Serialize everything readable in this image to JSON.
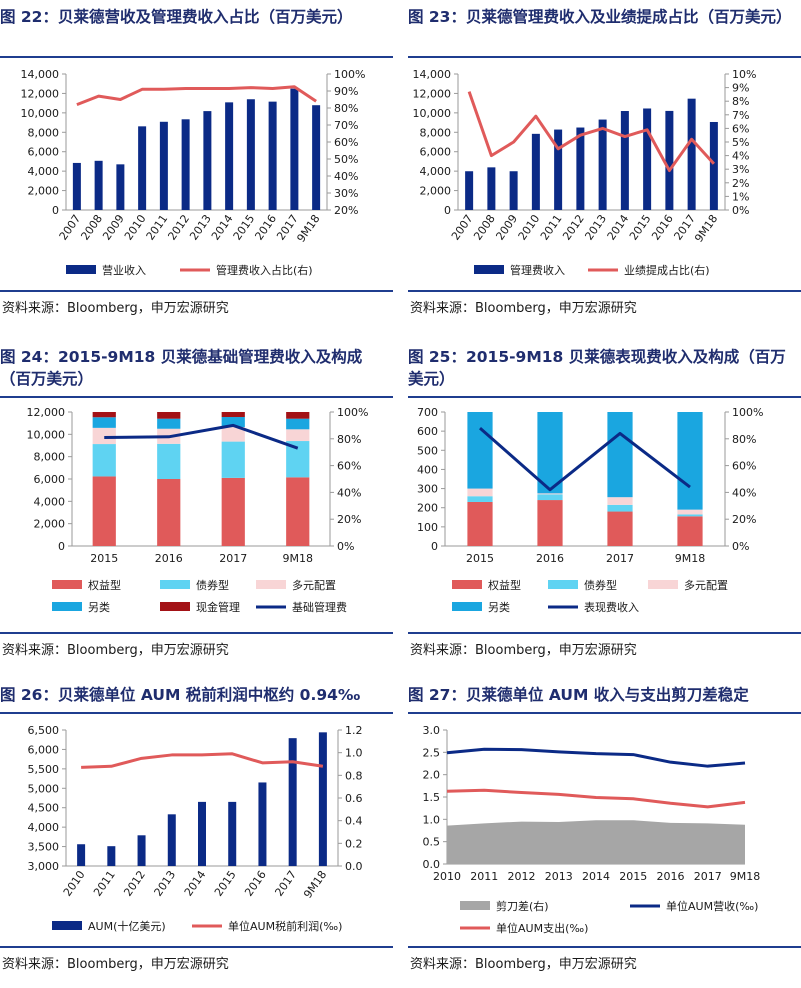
{
  "source_text": "资料来源：Bloomberg，申万宏源研究",
  "colors": {
    "navy": "#0b2a86",
    "red": "#e05a5a",
    "light_blue": "#5fd3f2",
    "pink": "#f8d5d6",
    "cyan": "#1aa6e0",
    "dark_red": "#a31216",
    "gray": "#a6a6a6",
    "title": "#1f2d6e",
    "rule": "#1f3d8f"
  },
  "charts": [
    {
      "id": "fig22",
      "title": "图 22：贝莱德营收及管理费收入占比（百万美元）",
      "chart_data": {
        "type": "bar+line",
        "categories": [
          "2007",
          "2008",
          "2009",
          "2010",
          "2011",
          "2012",
          "2013",
          "2014",
          "2015",
          "2016",
          "2017",
          "9M18"
        ],
        "left_axis": {
          "min": 0,
          "max": 14000,
          "step": 2000,
          "format": "thousands"
        },
        "right_axis": {
          "min": 20,
          "max": 100,
          "step": 10,
          "format": "percent"
        },
        "bars": [
          {
            "name": "营业收入",
            "color": "#0b2a86",
            "values": [
              4845,
              5064,
              4700,
              8612,
              9081,
              9337,
              10180,
              11081,
              11401,
              11155,
              12491,
              10787
            ]
          }
        ],
        "lines": [
          {
            "name": "管理费收入占比(右)",
            "color": "#e05a5a",
            "axis": "right",
            "values": [
              82,
              87,
              85,
              91,
              91,
              91.5,
              91.5,
              91.5,
              92,
              91.5,
              92.5,
              84
            ]
          }
        ],
        "legend": [
          {
            "label": "营业收入",
            "kind": "bar",
            "color": "#0b2a86"
          },
          {
            "label": "管理费收入占比(右)",
            "kind": "line",
            "color": "#e05a5a"
          }
        ],
        "rotate_x_labels": true
      }
    },
    {
      "id": "fig23",
      "title": "图 23：贝莱德管理费收入及业绩提成占比（百万美元）",
      "chart_data": {
        "type": "bar+line",
        "categories": [
          "2007",
          "2008",
          "2009",
          "2010",
          "2011",
          "2012",
          "2013",
          "2014",
          "2015",
          "2016",
          "2017",
          "9M18"
        ],
        "left_axis": {
          "min": 0,
          "max": 14000,
          "step": 2000,
          "format": "thousands"
        },
        "right_axis": {
          "min": 0,
          "max": 10,
          "step": 1,
          "format": "percent"
        },
        "bars": [
          {
            "name": "管理费收入",
            "color": "#0b2a86",
            "values": [
              3990,
              4390,
              3990,
              7840,
              8280,
              8490,
              9310,
              10190,
              10450,
              10200,
              11460,
              9060
            ]
          }
        ],
        "lines": [
          {
            "name": "业绩提成占比(右)",
            "color": "#e05a5a",
            "axis": "right",
            "values": [
              8.7,
              4.0,
              5.0,
              6.9,
              4.5,
              5.5,
              6.0,
              5.4,
              5.9,
              2.9,
              5.2,
              3.4
            ]
          }
        ],
        "legend": [
          {
            "label": "管理费收入",
            "kind": "bar",
            "color": "#0b2a86"
          },
          {
            "label": "业绩提成占比(右)",
            "kind": "line",
            "color": "#e05a5a"
          }
        ],
        "rotate_x_labels": true
      }
    },
    {
      "id": "fig24",
      "title": "图 24：2015-9M18 贝莱德基础管理费收入及构成（百万美元）",
      "chart_data": {
        "type": "stacked-bar+line",
        "categories": [
          "2015",
          "2016",
          "2017",
          "9M18"
        ],
        "left_axis": {
          "min": 0,
          "max": 12000,
          "step": 2000,
          "format": "thousands"
        },
        "right_axis": {
          "min": 0,
          "max": 100,
          "step": 20,
          "format": "percent"
        },
        "stacks": [
          {
            "name": "权益型",
            "color": "#e05a5a",
            "values": [
              6230,
              6000,
              6100,
              6150
            ]
          },
          {
            "name": "债券型",
            "color": "#5fd3f2",
            "values": [
              2900,
              3150,
              3250,
              3250
            ]
          },
          {
            "name": "多元配置",
            "color": "#f8d5d6",
            "values": [
              1450,
              1350,
              1300,
              1050
            ]
          },
          {
            "name": "另类",
            "color": "#1aa6e0",
            "values": [
              950,
              900,
              900,
              950
            ]
          },
          {
            "name": "现金管理",
            "color": "#a31216",
            "values": [
              500,
              600,
              650,
              700
            ]
          }
        ],
        "lines": [
          {
            "name": "基础管理费",
            "color": "#0b2a86",
            "axis": "right",
            "values": [
              81,
              81.5,
              90,
              73
            ]
          }
        ],
        "legend": [
          {
            "label": "权益型",
            "kind": "bar",
            "color": "#e05a5a"
          },
          {
            "label": "债券型",
            "kind": "bar",
            "color": "#5fd3f2"
          },
          {
            "label": "多元配置",
            "kind": "bar",
            "color": "#f8d5d6"
          },
          {
            "label": "另类",
            "kind": "bar",
            "color": "#1aa6e0"
          },
          {
            "label": "现金管理",
            "kind": "bar",
            "color": "#a31216"
          },
          {
            "label": "基础管理费",
            "kind": "line",
            "color": "#0b2a86"
          }
        ],
        "rotate_x_labels": false
      }
    },
    {
      "id": "fig25",
      "title": "图 25：2015-9M18 贝莱德表现费收入及构成（百万美元）",
      "chart_data": {
        "type": "stacked-bar+line",
        "categories": [
          "2015",
          "2016",
          "2017",
          "9M18"
        ],
        "left_axis": {
          "min": 0,
          "max": 700,
          "step": 100,
          "format": "plain"
        },
        "right_axis": {
          "min": 0,
          "max": 100,
          "step": 20,
          "format": "percent"
        },
        "stacks": [
          {
            "name": "权益型",
            "color": "#e05a5a",
            "values": [
              230,
              240,
              180,
              155
            ]
          },
          {
            "name": "债券型",
            "color": "#5fd3f2",
            "values": [
              30,
              30,
              35,
              10
            ]
          },
          {
            "name": "多元配置",
            "color": "#f8d5d6",
            "values": [
              40,
              5,
              40,
              25
            ]
          },
          {
            "name": "另类",
            "color": "#1aa6e0",
            "values": [
              400,
              425,
              445,
              510
            ]
          }
        ],
        "lines": [
          {
            "name": "表现费收入",
            "color": "#0b2a86",
            "axis": "right",
            "values": [
              88,
              42,
              84,
              44
            ]
          }
        ],
        "legend": [
          {
            "label": "权益型",
            "kind": "bar",
            "color": "#e05a5a"
          },
          {
            "label": "债券型",
            "kind": "bar",
            "color": "#5fd3f2"
          },
          {
            "label": "多元配置",
            "kind": "bar",
            "color": "#f8d5d6"
          },
          {
            "label": "另类",
            "kind": "bar",
            "color": "#1aa6e0"
          },
          {
            "label": "表现费收入",
            "kind": "line",
            "color": "#0b2a86"
          }
        ],
        "rotate_x_labels": false
      }
    },
    {
      "id": "fig26",
      "title": "图 26：贝莱德单位 AUM 税前利润中枢约 0.94‰",
      "chart_data": {
        "type": "bar+line",
        "categories": [
          "2010",
          "2011",
          "2012",
          "2013",
          "2014",
          "2015",
          "2016",
          "2017",
          "9M18"
        ],
        "left_axis": {
          "min": 3000,
          "max": 6500,
          "step": 500,
          "format": "thousands"
        },
        "right_axis": {
          "min": 0,
          "max": 1.2,
          "step": 0.2,
          "format": "decimal1"
        },
        "bars": [
          {
            "name": "AUM(十亿美元)",
            "color": "#0b2a86",
            "values": [
              3560,
              3510,
              3790,
              4330,
              4650,
              4650,
              5150,
              6290,
              6440
            ]
          }
        ],
        "lines": [
          {
            "name": "单位AUM税前利润(‰)",
            "color": "#e05a5a",
            "axis": "right",
            "values": [
              0.87,
              0.88,
              0.95,
              0.98,
              0.98,
              0.99,
              0.91,
              0.92,
              0.88
            ]
          }
        ],
        "legend": [
          {
            "label": "AUM(十亿美元)",
            "kind": "bar",
            "color": "#0b2a86"
          },
          {
            "label": "单位AUM税前利润(‰)",
            "kind": "line",
            "color": "#e05a5a"
          }
        ],
        "rotate_x_labels": true
      }
    },
    {
      "id": "fig27",
      "title": "图 27：贝莱德单位 AUM 收入与支出剪刀差稳定",
      "chart_data": {
        "type": "area+line",
        "categories": [
          "2010",
          "2011",
          "2012",
          "2013",
          "2014",
          "2015",
          "2016",
          "2017",
          "9M18"
        ],
        "left_axis": {
          "min": 0,
          "max": 3.0,
          "step": 0.5,
          "format": "decimal1"
        },
        "area": {
          "name": "剪刀差(右)",
          "color": "#a6a6a6",
          "values": [
            0.86,
            0.91,
            0.95,
            0.94,
            0.98,
            0.98,
            0.92,
            0.91,
            0.88
          ]
        },
        "lines": [
          {
            "name": "单位AUM营收(‰)",
            "color": "#0b2a86",
            "axis": "left",
            "values": [
              2.49,
              2.57,
              2.56,
              2.51,
              2.47,
              2.45,
              2.28,
              2.19,
              2.26
            ]
          },
          {
            "name": "单位AUM支出(‰)",
            "color": "#e05a5a",
            "axis": "left",
            "values": [
              1.63,
              1.65,
              1.6,
              1.56,
              1.49,
              1.46,
              1.36,
              1.28,
              1.38
            ]
          }
        ],
        "legend": [
          {
            "label": "剪刀差(右)",
            "kind": "bar",
            "color": "#a6a6a6"
          },
          {
            "label": "单位AUM营收(‰)",
            "kind": "line",
            "color": "#0b2a86"
          },
          {
            "label": "单位AUM支出(‰)",
            "kind": "line",
            "color": "#e05a5a"
          }
        ],
        "rotate_x_labels": false
      }
    }
  ]
}
